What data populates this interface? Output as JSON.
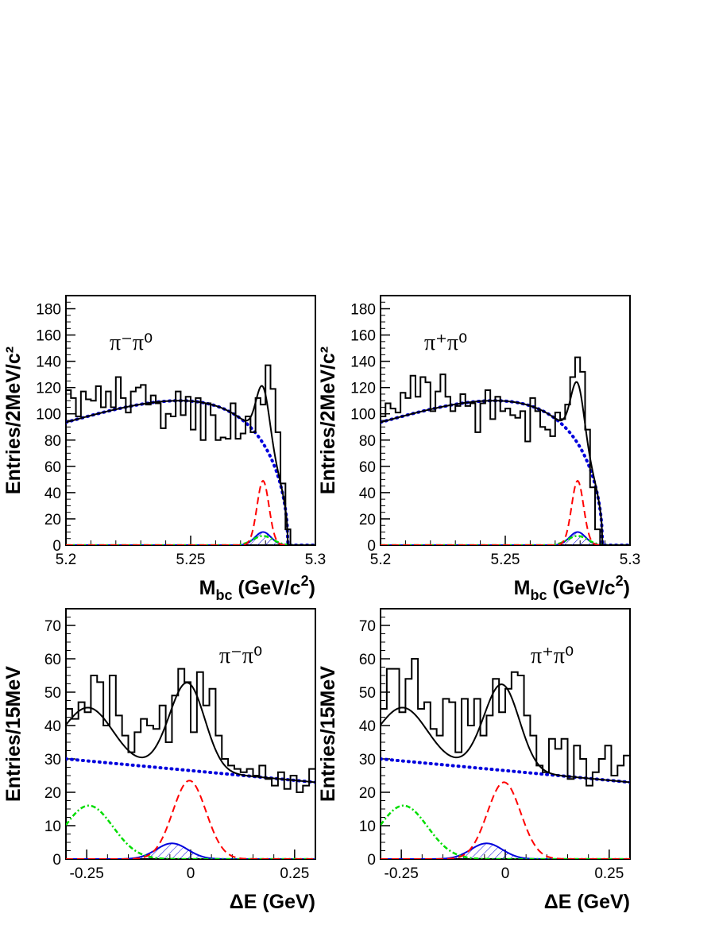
{
  "chart_data": [
    {
      "type": "histogram",
      "panel_label": "π⁻π⁰",
      "xlabel_main": "M",
      "xlabel_sub": "bc",
      "xlabel_rest": " (GeV/c",
      "xlabel_sup": "2",
      "xlabel_close": ")",
      "ylabel": "Entries/2MeV/c²",
      "xlim": [
        5.2,
        5.3
      ],
      "ylim": [
        0,
        190
      ],
      "xticks": [
        5.2,
        5.25,
        5.3
      ],
      "xtick_labels": [
        "5.2",
        "5.25",
        "5.3"
      ],
      "yticks": [
        0,
        20,
        40,
        60,
        80,
        100,
        120,
        140,
        160,
        180
      ],
      "bin_width": 0.002,
      "data_counts": [
        118,
        112,
        98,
        117,
        111,
        110,
        121,
        105,
        117,
        105,
        128,
        112,
        101,
        117,
        120,
        122,
        107,
        114,
        108,
        89,
        100,
        98,
        117,
        99,
        113,
        88,
        112,
        80,
        108,
        99,
        80,
        82,
        81,
        108,
        81,
        85,
        98,
        86,
        112,
        107,
        137,
        119,
        86,
        47,
        12,
        0,
        0,
        0,
        0,
        0
      ],
      "total_fit": {
        "type": "gaussian_plus_argus",
        "peak": 5.279,
        "width": 0.0027,
        "signal_amp": 43,
        "argus_norm": 110,
        "argus_c": -30,
        "endpoint": 5.289
      },
      "continuum_bkg": {
        "style": "dotted",
        "color": "#0000dd"
      },
      "signal": {
        "style": "dashed",
        "color": "#ff0000",
        "peak": 5.279,
        "sigma": 0.0024,
        "amp": 49
      },
      "rho_feed": {
        "style": "hatched",
        "color": "#0000dd",
        "peak": 5.279,
        "sigma": 0.0032,
        "amp": 10
      },
      "other_bkg": {
        "style": "dash-dot",
        "color": "#00dd00",
        "amp": 7
      }
    },
    {
      "type": "histogram",
      "panel_label": "π⁺π⁰",
      "xlabel_main": "M",
      "xlabel_sub": "bc",
      "xlabel_rest": " (GeV/c",
      "xlabel_sup": "2",
      "xlabel_close": ")",
      "ylabel": "Entries/2MeV/c²",
      "xlim": [
        5.2,
        5.3
      ],
      "ylim": [
        0,
        190
      ],
      "xticks": [
        5.2,
        5.25,
        5.3
      ],
      "xtick_labels": [
        "5.2",
        "5.25",
        "5.3"
      ],
      "yticks": [
        0,
        20,
        40,
        60,
        80,
        100,
        120,
        140,
        160,
        180
      ],
      "bin_width": 0.002,
      "data_counts": [
        98,
        108,
        104,
        101,
        116,
        112,
        129,
        113,
        128,
        124,
        102,
        117,
        130,
        113,
        102,
        106,
        115,
        106,
        108,
        86,
        108,
        118,
        96,
        113,
        102,
        104,
        99,
        97,
        102,
        79,
        112,
        102,
        90,
        88,
        83,
        101,
        96,
        107,
        128,
        143,
        132,
        88,
        44,
        12,
        0,
        0,
        0,
        0,
        0,
        0
      ],
      "total_fit": {
        "type": "gaussian_plus_argus",
        "peak": 5.279,
        "width": 0.0027,
        "signal_amp": 46,
        "argus_norm": 110,
        "argus_c": -30,
        "endpoint": 5.289
      },
      "continuum_bkg": {
        "style": "dotted",
        "color": "#0000dd"
      },
      "signal": {
        "style": "dashed",
        "color": "#ff0000",
        "peak": 5.279,
        "sigma": 0.0024,
        "amp": 49
      },
      "rho_feed": {
        "style": "hatched",
        "color": "#0000dd",
        "peak": 5.279,
        "sigma": 0.0032,
        "amp": 10
      },
      "other_bkg": {
        "style": "dash-dot",
        "color": "#00dd00",
        "amp": 7
      }
    },
    {
      "type": "histogram",
      "panel_label": "π⁻π⁰",
      "xlabel_main": "ΔE (GeV)",
      "ylabel": "Entries/15MeV",
      "xlim": [
        -0.3,
        0.3
      ],
      "ylim": [
        0,
        75
      ],
      "xticks": [
        -0.25,
        0,
        0.25
      ],
      "xtick_labels": [
        "-0.25",
        "0",
        "0.25"
      ],
      "yticks": [
        0,
        10,
        20,
        30,
        40,
        50,
        60,
        70
      ],
      "bin_width": 0.015,
      "data_counts": [
        45,
        42,
        47,
        44,
        55,
        53,
        40,
        55,
        43,
        37,
        32,
        38,
        42,
        40,
        39,
        46,
        35,
        49,
        57,
        53,
        38,
        56,
        46,
        51,
        37,
        30,
        28,
        27,
        26,
        27,
        25,
        28,
        24,
        22,
        26,
        21,
        25,
        20,
        22,
        27
      ],
      "bkg_line": {
        "style": "dotted",
        "color": "#0000dd",
        "start": 30,
        "end": 23
      },
      "signal": {
        "style": "dashed",
        "color": "#ff0000",
        "peak": -0.003,
        "sigma": 0.04,
        "amp": 23.5
      },
      "rho_feed": {
        "style": "hatched",
        "color": "#0000dd",
        "peak": -0.045,
        "sigma": 0.038,
        "amp": 4.7
      },
      "other_bkg": {
        "style": "dash-dot",
        "color": "#00dd00",
        "peak": -0.245,
        "sigma": 0.058,
        "amp": 16
      }
    },
    {
      "type": "histogram",
      "panel_label": "π⁺π⁰",
      "xlabel_main": "ΔE (GeV)",
      "ylabel": "Entries/15MeV",
      "xlim": [
        -0.3,
        0.3
      ],
      "ylim": [
        0,
        75
      ],
      "xticks": [
        -0.25,
        0,
        0.25
      ],
      "xtick_labels": [
        "-0.25",
        "0",
        "0.25"
      ],
      "yticks": [
        0,
        10,
        20,
        30,
        40,
        50,
        60,
        70
      ],
      "bin_width": 0.015,
      "data_counts": [
        45,
        57,
        57,
        44,
        54,
        60,
        45,
        47,
        39,
        37,
        48,
        47,
        32,
        48,
        40,
        48,
        37,
        43,
        54,
        44,
        51,
        56,
        55,
        43,
        37,
        28,
        26,
        36,
        33,
        36,
        24,
        34,
        30,
        22,
        26,
        30,
        34,
        25,
        28,
        31
      ],
      "bkg_line": {
        "style": "dotted",
        "color": "#0000dd",
        "start": 30,
        "end": 23
      },
      "signal": {
        "style": "dashed",
        "color": "#ff0000",
        "peak": -0.003,
        "sigma": 0.04,
        "amp": 23
      },
      "rho_feed": {
        "style": "hatched",
        "color": "#0000dd",
        "peak": -0.045,
        "sigma": 0.038,
        "amp": 4.7
      },
      "other_bkg": {
        "style": "dash-dot",
        "color": "#00dd00",
        "peak": -0.245,
        "sigma": 0.058,
        "amp": 16
      }
    }
  ]
}
